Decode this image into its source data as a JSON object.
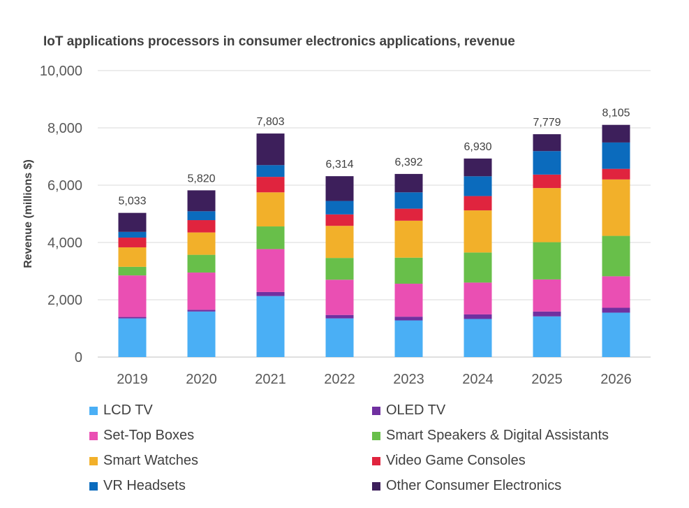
{
  "chart_data": {
    "type": "bar",
    "stacked": true,
    "title": "IoT applications processors in consumer electronics applications, revenue",
    "xlabel": "",
    "ylabel": "Revenue  (millions $)",
    "ylim": [
      0,
      10000
    ],
    "yticks": [
      0,
      2000,
      4000,
      6000,
      8000,
      10000
    ],
    "ytick_labels": [
      "0",
      "2,000",
      "4,000",
      "6,000",
      "8,000",
      "10,000"
    ],
    "grid": true,
    "legend_position": "bottom",
    "categories": [
      "2019",
      "2020",
      "2021",
      "2022",
      "2023",
      "2024",
      "2025",
      "2026"
    ],
    "totals": [
      5033,
      5820,
      7803,
      6314,
      6392,
      6930,
      7779,
      8105
    ],
    "total_labels": [
      "5,033",
      "5,820",
      "7,803",
      "6,314",
      "6,392",
      "6,930",
      "7,779",
      "8,105"
    ],
    "series": [
      {
        "name": "LCD TV",
        "color": "#4aaff5",
        "values": [
          1350,
          1590,
          2130,
          1350,
          1280,
          1330,
          1420,
          1550
        ]
      },
      {
        "name": "OLED TV",
        "color": "#7030a0",
        "values": [
          50,
          60,
          140,
          120,
          130,
          160,
          170,
          170
        ]
      },
      {
        "name": "Set-Top Boxes",
        "color": "#ea4fb3",
        "values": [
          1450,
          1300,
          1500,
          1230,
          1150,
          1110,
          1120,
          1100
        ]
      },
      {
        "name": "Smart Speakers & Digital Assistants",
        "color": "#68bf4a",
        "values": [
          300,
          620,
          790,
          760,
          910,
          1050,
          1300,
          1410
        ]
      },
      {
        "name": "Smart Watches",
        "color": "#f2b02a",
        "values": [
          680,
          780,
          1190,
          1120,
          1290,
          1470,
          1890,
          1970
        ]
      },
      {
        "name": "Video Game Consoles",
        "color": "#e0243e",
        "values": [
          340,
          430,
          540,
          400,
          420,
          500,
          470,
          370
        ]
      },
      {
        "name": "VR Headsets",
        "color": "#0b6bbd",
        "values": [
          200,
          310,
          410,
          470,
          570,
          690,
          820,
          920
        ]
      },
      {
        "name": "Other Consumer Electronics",
        "color": "#3d1f5b",
        "values": [
          663,
          730,
          1103,
          864,
          642,
          620,
          589,
          615
        ]
      }
    ]
  }
}
